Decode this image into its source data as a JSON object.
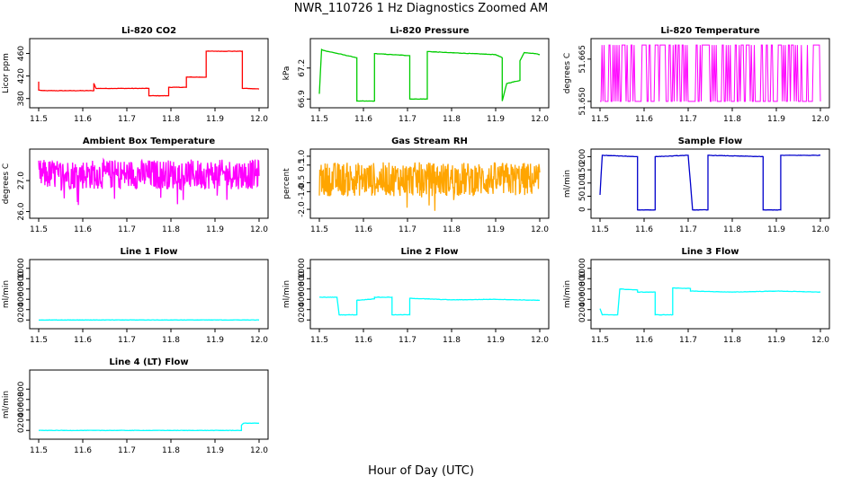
{
  "figure": {
    "title": "NWR_110726  1 Hz Diagnostics Zoomed AM",
    "xlabel": "Hour of Day (UTC)"
  },
  "chart_data": [
    {
      "type": "line",
      "title": "Li-820 CO2",
      "ylabel": "Licor ppm",
      "color": "#ff0000",
      "xlim": [
        11.5,
        12.0
      ],
      "ylim": [
        370,
        480
      ],
      "xticks": [
        11.5,
        11.6,
        11.7,
        11.8,
        11.9,
        12.0
      ],
      "xtick_labels": [
        "11.5",
        "11.6",
        "11.7",
        "11.8",
        "11.9",
        "12.0"
      ],
      "yticks": [
        380,
        420,
        460
      ],
      "ytick_labels": [
        "380",
        "420",
        "460"
      ],
      "x": [
        11.5,
        11.5,
        11.51,
        11.625,
        11.625,
        11.63,
        11.75,
        11.75,
        11.795,
        11.795,
        11.835,
        11.835,
        11.88,
        11.88,
        11.962,
        11.962,
        11.97,
        12.0
      ],
      "y": [
        410,
        395,
        394,
        394,
        407,
        398,
        398,
        385,
        385,
        400,
        400,
        418,
        418,
        464,
        464,
        398,
        398,
        397
      ]
    },
    {
      "type": "line",
      "title": "Li-820 Pressure",
      "ylabel": "kPa",
      "color": "#00cc00",
      "xlim": [
        11.5,
        12.0
      ],
      "ylim": [
        66.85,
        67.45
      ],
      "xticks": [
        11.5,
        11.6,
        11.7,
        11.8,
        11.9,
        12.0
      ],
      "xtick_labels": [
        "11.5",
        "11.6",
        "11.7",
        "11.8",
        "11.9",
        "12.0"
      ],
      "yticks": [
        66.9,
        67.2
      ],
      "ytick_labels": [
        "66.9",
        "67.2"
      ],
      "x": [
        11.5,
        11.505,
        11.51,
        11.585,
        11.585,
        11.625,
        11.625,
        11.665,
        11.705,
        11.705,
        11.745,
        11.745,
        11.79,
        11.9,
        11.915,
        11.915,
        11.925,
        11.955,
        11.955,
        11.965,
        11.99,
        12.0
      ],
      "y": [
        66.95,
        67.38,
        67.37,
        67.3,
        66.88,
        66.88,
        67.34,
        67.33,
        67.32,
        66.9,
        66.9,
        67.36,
        67.35,
        67.33,
        67.3,
        66.88,
        67.05,
        67.08,
        67.27,
        67.35,
        67.34,
        67.33
      ]
    },
    {
      "type": "line",
      "title": "Li-820 Temperature",
      "ylabel": "degrees C",
      "color": "#ff00ff",
      "xlim": [
        11.5,
        12.0
      ],
      "ylim": [
        51.649,
        51.671
      ],
      "xticks": [
        11.5,
        11.6,
        11.7,
        11.8,
        11.9,
        12.0
      ],
      "xtick_labels": [
        "11.5",
        "11.6",
        "11.7",
        "11.8",
        "11.9",
        "12.0"
      ],
      "yticks": [
        51.65,
        51.665
      ],
      "ytick_labels": [
        "51.650",
        "51.665"
      ],
      "levels": [
        51.65,
        51.67
      ]
    },
    {
      "type": "line",
      "title": "Ambient Box Temperature",
      "ylabel": "degrees C",
      "color": "#ff00ff",
      "xlim": [
        11.5,
        12.0
      ],
      "ylim": [
        25.9,
        27.9
      ],
      "xticks": [
        11.5,
        11.6,
        11.7,
        11.8,
        11.9,
        12.0
      ],
      "xtick_labels": [
        "11.5",
        "11.6",
        "11.7",
        "11.8",
        "11.9",
        "12.0"
      ],
      "yticks": [
        26.0,
        27.0
      ],
      "ytick_labels": [
        "26.0",
        "27.0"
      ],
      "mean": 27.2,
      "noise_range": [
        26.2,
        27.8
      ]
    },
    {
      "type": "line",
      "title": "Gas Stream RH",
      "ylabel": "percent",
      "color": "#ffa500",
      "xlim": [
        11.5,
        12.0
      ],
      "ylim": [
        -2.3,
        1.2
      ],
      "xticks": [
        11.5,
        11.6,
        11.7,
        11.8,
        11.9,
        12.0
      ],
      "xtick_labels": [
        "11.5",
        "11.6",
        "11.7",
        "11.8",
        "11.9",
        "12.0"
      ],
      "yticks": [
        -2.0,
        -1.0,
        -0.5,
        0.5,
        1.0
      ],
      "ytick_labels": [
        "-2.0",
        "-1.0",
        "-0.5",
        "0.5",
        "1.0"
      ],
      "mean": -0.3,
      "noise_range": [
        -2.2,
        0.9
      ]
    },
    {
      "type": "line",
      "title": "Sample Flow",
      "ylabel": "ml/min",
      "color": "#0000cc",
      "xlim": [
        11.5,
        12.0
      ],
      "ylim": [
        -20,
        215
      ],
      "xticks": [
        11.5,
        11.6,
        11.7,
        11.8,
        11.9,
        12.0
      ],
      "xtick_labels": [
        "11.5",
        "11.6",
        "11.7",
        "11.8",
        "11.9",
        "12.0"
      ],
      "yticks": [
        0,
        50,
        100,
        150,
        200
      ],
      "ytick_labels": [
        "0",
        "50",
        "100",
        "150",
        "200"
      ],
      "x": [
        11.5,
        11.505,
        11.585,
        11.585,
        11.625,
        11.625,
        11.7,
        11.71,
        11.745,
        11.745,
        11.87,
        11.87,
        11.91,
        11.91,
        12.0
      ],
      "y": [
        55,
        205,
        200,
        -2,
        -2,
        200,
        205,
        -2,
        -2,
        205,
        200,
        -2,
        -2,
        205,
        205
      ]
    },
    {
      "type": "line",
      "title": "Line 1 Flow",
      "ylabel": "ml/min",
      "color": "#00ffff",
      "xlim": [
        11.5,
        12.0
      ],
      "ylim": [
        -100,
        1100
      ],
      "xticks": [
        11.5,
        11.6,
        11.7,
        11.8,
        11.9,
        12.0
      ],
      "xtick_labels": [
        "11.5",
        "11.6",
        "11.7",
        "11.8",
        "11.9",
        "12.0"
      ],
      "yticks": [
        0,
        200,
        400,
        600,
        800,
        1000
      ],
      "ytick_labels": [
        "0",
        "200",
        "400",
        "600",
        "800",
        "1000"
      ],
      "x": [
        11.5,
        12.0
      ],
      "y": [
        0,
        0
      ]
    },
    {
      "type": "line",
      "title": "Line 2 Flow",
      "ylabel": "ml/min",
      "color": "#00ffff",
      "xlim": [
        11.5,
        12.0
      ],
      "ylim": [
        -100,
        1100
      ],
      "xticks": [
        11.5,
        11.6,
        11.7,
        11.8,
        11.9,
        12.0
      ],
      "xtick_labels": [
        "11.5",
        "11.6",
        "11.7",
        "11.8",
        "11.9",
        "12.0"
      ],
      "yticks": [
        0,
        200,
        400,
        600,
        800,
        1000
      ],
      "ytick_labels": [
        "0",
        "200",
        "400",
        "600",
        "800",
        "1000"
      ],
      "x": [
        11.5,
        11.54,
        11.545,
        11.585,
        11.585,
        11.625,
        11.625,
        11.665,
        11.665,
        11.705,
        11.705,
        11.8,
        11.9,
        12.0
      ],
      "y": [
        440,
        440,
        100,
        100,
        380,
        410,
        440,
        440,
        100,
        100,
        420,
        390,
        400,
        380
      ]
    },
    {
      "type": "line",
      "title": "Line 3 Flow",
      "ylabel": "ml/min",
      "color": "#00ffff",
      "xlim": [
        11.5,
        12.0
      ],
      "ylim": [
        -100,
        1100
      ],
      "xticks": [
        11.5,
        11.6,
        11.7,
        11.8,
        11.9,
        12.0
      ],
      "xtick_labels": [
        "11.5",
        "11.6",
        "11.7",
        "11.8",
        "11.9",
        "12.0"
      ],
      "yticks": [
        0,
        200,
        400,
        600,
        800,
        1000
      ],
      "ytick_labels": [
        "0",
        "200",
        "400",
        "600",
        "800",
        "1000"
      ],
      "x": [
        11.5,
        11.505,
        11.54,
        11.545,
        11.585,
        11.585,
        11.625,
        11.625,
        11.665,
        11.665,
        11.705,
        11.705,
        11.8,
        11.9,
        12.0
      ],
      "y": [
        220,
        100,
        100,
        600,
        580,
        540,
        540,
        100,
        100,
        620,
        610,
        560,
        540,
        560,
        540
      ]
    },
    {
      "type": "line",
      "title": "Line 4 (LT) Flow",
      "ylabel": "ml/min",
      "color": "#00ffff",
      "xlim": [
        11.5,
        12.0
      ],
      "ylim": [
        -100,
        1100
      ],
      "xticks": [
        11.5,
        11.6,
        11.7,
        11.8,
        11.9,
        12.0
      ],
      "xtick_labels": [
        "11.5",
        "11.6",
        "11.7",
        "11.8",
        "11.9",
        "12.0"
      ],
      "yticks": [
        0,
        200,
        400,
        600,
        800
      ],
      "ytick_labels": [
        "0",
        "200",
        "400",
        "600",
        "800"
      ],
      "x": [
        11.5,
        11.96,
        11.96,
        11.965,
        12.0
      ],
      "y": [
        0,
        0,
        100,
        140,
        140
      ]
    }
  ]
}
